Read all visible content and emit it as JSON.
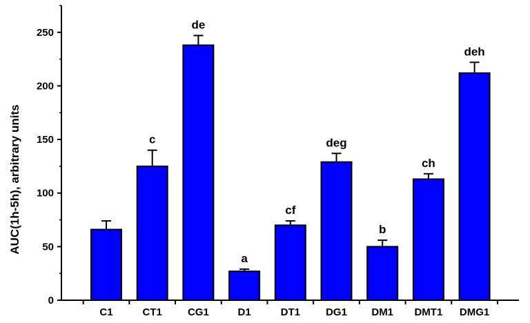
{
  "chart_data": {
    "type": "bar",
    "ylabel": "AUC(1h-5h), arbitrary units",
    "xlabel": "",
    "title": "",
    "ylim": [
      0,
      275
    ],
    "yticks": [
      0,
      50,
      100,
      150,
      200,
      250
    ],
    "grid": false,
    "bar_color": "#0000ff",
    "categories": [
      "C1",
      "CT1",
      "CG1",
      "D1",
      "DT1",
      "DG1",
      "DM1",
      "DMT1",
      "DMG1"
    ],
    "values": [
      66,
      125,
      238,
      27,
      70,
      129,
      50,
      113,
      212
    ],
    "errors": [
      8,
      15,
      9,
      2,
      4,
      8,
      6,
      5,
      10
    ],
    "significance_labels": [
      "",
      "c",
      "de",
      "a",
      "cf",
      "deg",
      "b",
      "ch",
      "deh"
    ]
  }
}
